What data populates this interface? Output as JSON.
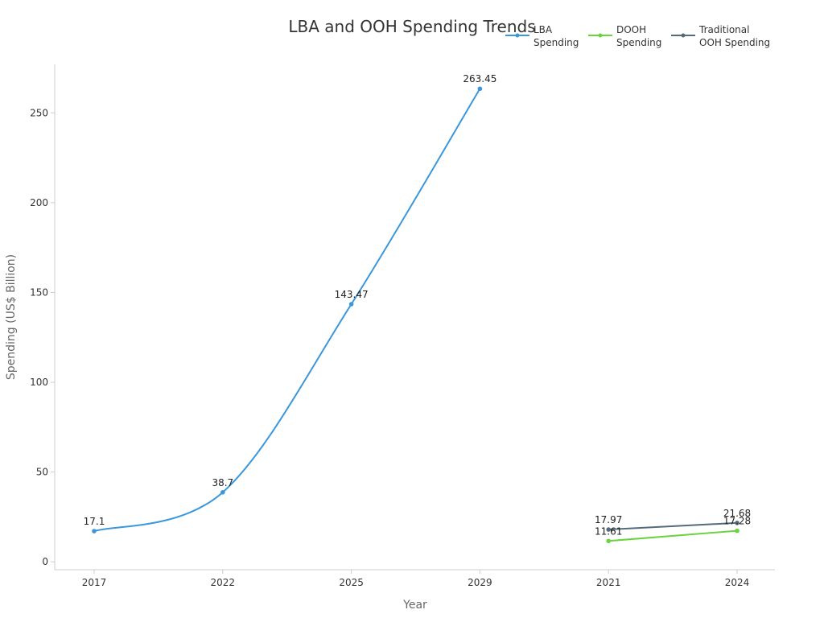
{
  "chart_data": {
    "type": "line",
    "title": "LBA and OOH Spending Trends",
    "xlabel": "Year",
    "ylabel": "Spending (US$ Billion)",
    "categories": [
      "2017",
      "2022",
      "2025",
      "2029",
      "2021",
      "2024"
    ],
    "ylim": [
      -4.4,
      277
    ],
    "yticks": [
      0,
      50,
      100,
      150,
      200,
      250
    ],
    "grid": false,
    "legend_position": "top-right",
    "series": [
      {
        "name": "LBA\nSpending",
        "color": "#3a97dc",
        "smooth": true,
        "points": [
          {
            "x": "2017",
            "y": 17.1,
            "label": "17.1"
          },
          {
            "x": "2022",
            "y": 38.7,
            "label": "38.7"
          },
          {
            "x": "2025",
            "y": 143.47,
            "label": "143.47"
          },
          {
            "x": "2029",
            "y": 263.45,
            "label": "263.45"
          }
        ]
      },
      {
        "name": "DOOH\nSpending",
        "color": "#6ad43d",
        "smooth": false,
        "points": [
          {
            "x": "2021",
            "y": 11.61,
            "label": "11.61"
          },
          {
            "x": "2024",
            "y": 17.28,
            "label": "17.28"
          }
        ]
      },
      {
        "name": "Traditional\nOOH Spending",
        "color": "#556b7a",
        "smooth": false,
        "points": [
          {
            "x": "2021",
            "y": 17.97,
            "label": "17.97"
          },
          {
            "x": "2024",
            "y": 21.68,
            "label": "21.68"
          }
        ]
      }
    ]
  }
}
